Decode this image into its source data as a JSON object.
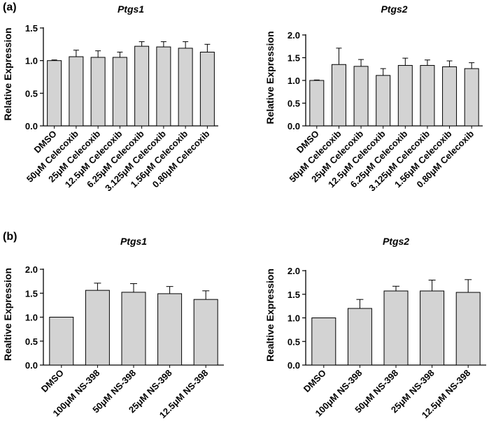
{
  "panels": [
    {
      "label": "(a)"
    },
    {
      "label": "(b)"
    }
  ],
  "chart_data": [
    {
      "type": "bar",
      "panel": "(a)",
      "title": "Ptgs1",
      "ylabel": "Relative Expression",
      "xlabel": "",
      "ylim": [
        0,
        1.5
      ],
      "yticks": [
        "0.0",
        "0.5",
        "1.0",
        "1.5"
      ],
      "categories": [
        "DMSO",
        "50μM Celecoxib",
        "25μM Celecoxib",
        "12.5μM Celecoxib",
        "6.25μM Celecoxib",
        "3.125μM Celecoxib",
        "1.56μM Celecoxib",
        "0.80μM Celecoxib"
      ],
      "values": [
        1.0,
        1.06,
        1.05,
        1.05,
        1.22,
        1.21,
        1.19,
        1.13
      ],
      "errors": [
        0.01,
        0.1,
        0.1,
        0.08,
        0.07,
        0.08,
        0.1,
        0.12
      ],
      "bar_color": "#d3d3d3"
    },
    {
      "type": "bar",
      "panel": "(a)",
      "title": "Ptgs2",
      "ylabel": "Relative Expression",
      "xlabel": "",
      "ylim": [
        0,
        2.0
      ],
      "yticks": [
        "0.0",
        "0.5",
        "1.0",
        "1.5",
        "2.0"
      ],
      "categories": [
        "DMSO",
        "50μM Celecoxib",
        "25μM Celecoxib",
        "12.5μM Celecoxib",
        "6.25μM Celecoxib",
        "3.125μM Celecoxib",
        "1.56μM Celecoxib",
        "0.80μM Celecoxib"
      ],
      "values": [
        1.0,
        1.35,
        1.31,
        1.11,
        1.33,
        1.33,
        1.3,
        1.26
      ],
      "errors": [
        0.01,
        0.36,
        0.15,
        0.15,
        0.16,
        0.12,
        0.13,
        0.13
      ],
      "bar_color": "#d3d3d3"
    },
    {
      "type": "bar",
      "panel": "(b)",
      "title": "Ptgs1",
      "ylabel": "Realtive Expression",
      "xlabel": "",
      "ylim": [
        0,
        2.0
      ],
      "yticks": [
        "0.0",
        "0.5",
        "1.0",
        "1.5",
        "2.0"
      ],
      "categories": [
        "DMSO",
        "100μM NS-398",
        "50μM NS-398",
        "25μM NS-398",
        "12.5μM NS-398"
      ],
      "values": [
        1.0,
        1.56,
        1.52,
        1.49,
        1.37
      ],
      "errors": [
        0.0,
        0.15,
        0.18,
        0.15,
        0.18
      ],
      "bar_color": "#d3d3d3"
    },
    {
      "type": "bar",
      "panel": "(b)",
      "title": "Ptgs2",
      "ylabel": "Realtive Expression",
      "xlabel": "",
      "ylim": [
        0,
        2.0
      ],
      "yticks": [
        "0.0",
        "0.5",
        "1.0",
        "1.5",
        "2.0"
      ],
      "categories": [
        "DMSO",
        "100μM NS-398",
        "50μM NS-398",
        "25μM NS-398",
        "12.5μM NS-398"
      ],
      "values": [
        1.0,
        1.2,
        1.57,
        1.57,
        1.54
      ],
      "errors": [
        0.0,
        0.19,
        0.1,
        0.23,
        0.27
      ],
      "bar_color": "#d3d3d3"
    }
  ]
}
